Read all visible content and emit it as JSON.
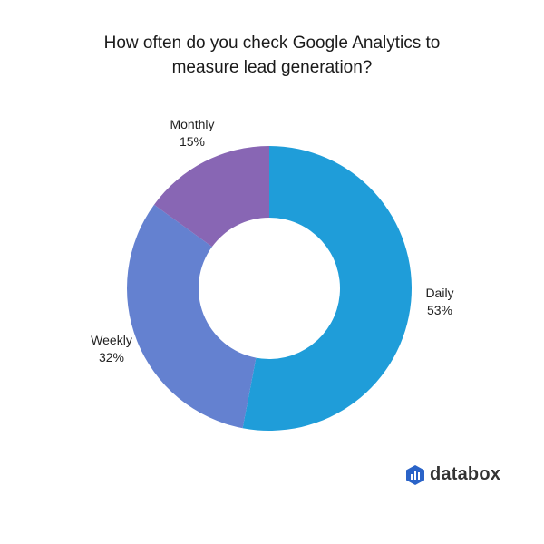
{
  "chart_data": {
    "type": "pie",
    "donut": true,
    "title": "How often do you check Google Analytics to measure lead generation?",
    "title_lines": [
      "How often do you check Google Analytics to",
      "measure lead generation?"
    ],
    "slices": [
      {
        "label": "Daily",
        "value": 53,
        "display": "53%",
        "color": "#1f9dd9"
      },
      {
        "label": "Weekly",
        "value": 32,
        "display": "32%",
        "color": "#6481d0"
      },
      {
        "label": "Monthly",
        "value": 15,
        "display": "15%",
        "color": "#8866b4"
      }
    ],
    "start": "top",
    "direction": "clockwise"
  },
  "brand": {
    "name": "databox",
    "color": "#2a63c8"
  }
}
